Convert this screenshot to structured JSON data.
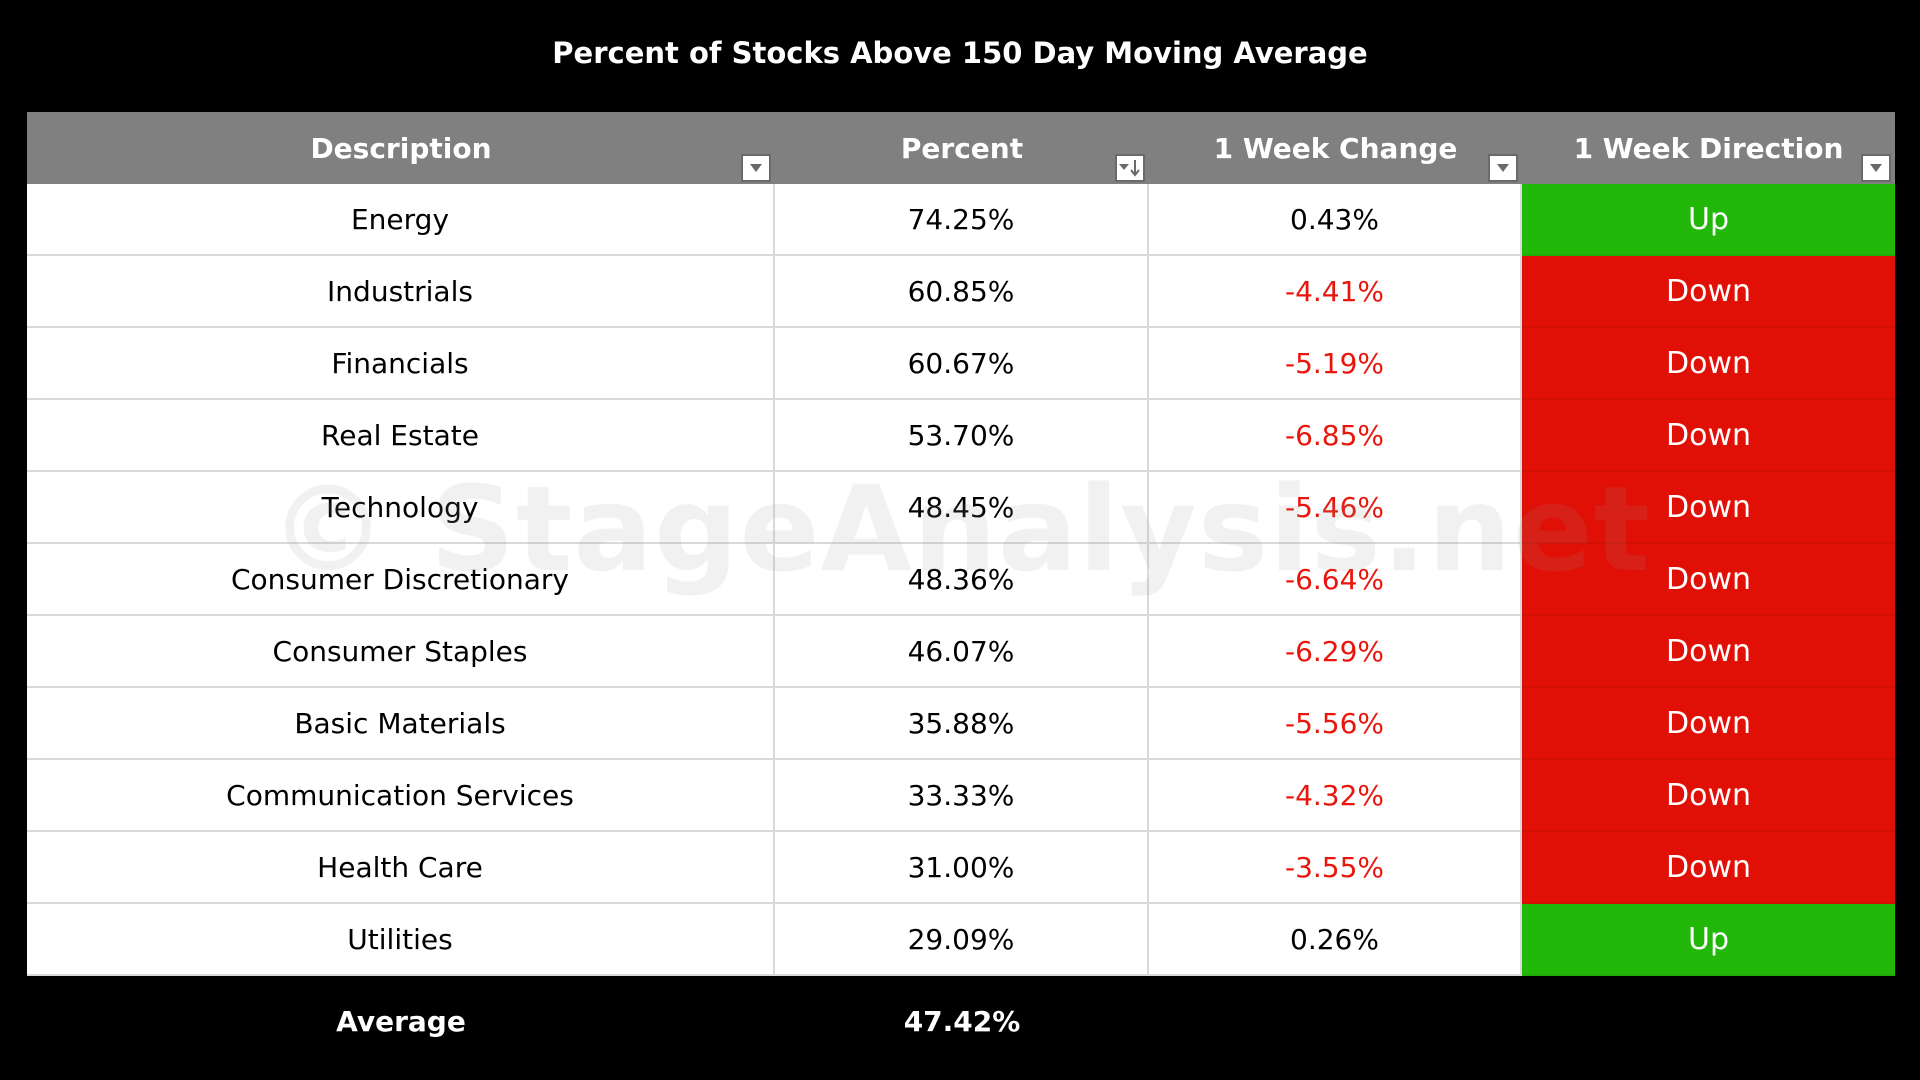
{
  "chart_data": {
    "type": "table",
    "title": "Percent of Stocks Above 150 Day Moving Average",
    "columns": [
      "Description",
      "Percent",
      "1 Week Change",
      "1 Week Direction"
    ],
    "rows": [
      {
        "description": "Energy",
        "percent": "74.25%",
        "change": "0.43%",
        "direction": "Up",
        "negative": false
      },
      {
        "description": "Industrials",
        "percent": "60.85%",
        "change": "-4.41%",
        "direction": "Down",
        "negative": true
      },
      {
        "description": "Financials",
        "percent": "60.67%",
        "change": "-5.19%",
        "direction": "Down",
        "negative": true
      },
      {
        "description": "Real Estate",
        "percent": "53.70%",
        "change": "-6.85%",
        "direction": "Down",
        "negative": true
      },
      {
        "description": "Technology",
        "percent": "48.45%",
        "change": "-5.46%",
        "direction": "Down",
        "negative": true
      },
      {
        "description": "Consumer Discretionary",
        "percent": "48.36%",
        "change": "-6.64%",
        "direction": "Down",
        "negative": true
      },
      {
        "description": "Consumer Staples",
        "percent": "46.07%",
        "change": "-6.29%",
        "direction": "Down",
        "negative": true
      },
      {
        "description": "Basic Materials",
        "percent": "35.88%",
        "change": "-5.56%",
        "direction": "Down",
        "negative": true
      },
      {
        "description": "Communication Services",
        "percent": "33.33%",
        "change": "-4.32%",
        "direction": "Down",
        "negative": true
      },
      {
        "description": "Health Care",
        "percent": "31.00%",
        "change": "-3.55%",
        "direction": "Down",
        "negative": true
      },
      {
        "description": "Utilities",
        "percent": "29.09%",
        "change": "0.26%",
        "direction": "Up",
        "negative": false
      }
    ],
    "average_label": "Average",
    "average_value": "47.42%",
    "sorted_column": "Percent",
    "sort_order": "descending"
  },
  "watermark": "© StageAnalysis.net",
  "colors": {
    "background": "#000000",
    "header": "#808080",
    "up": "#22b80a",
    "down": "#e01006",
    "negative_text": "#e8160c"
  }
}
